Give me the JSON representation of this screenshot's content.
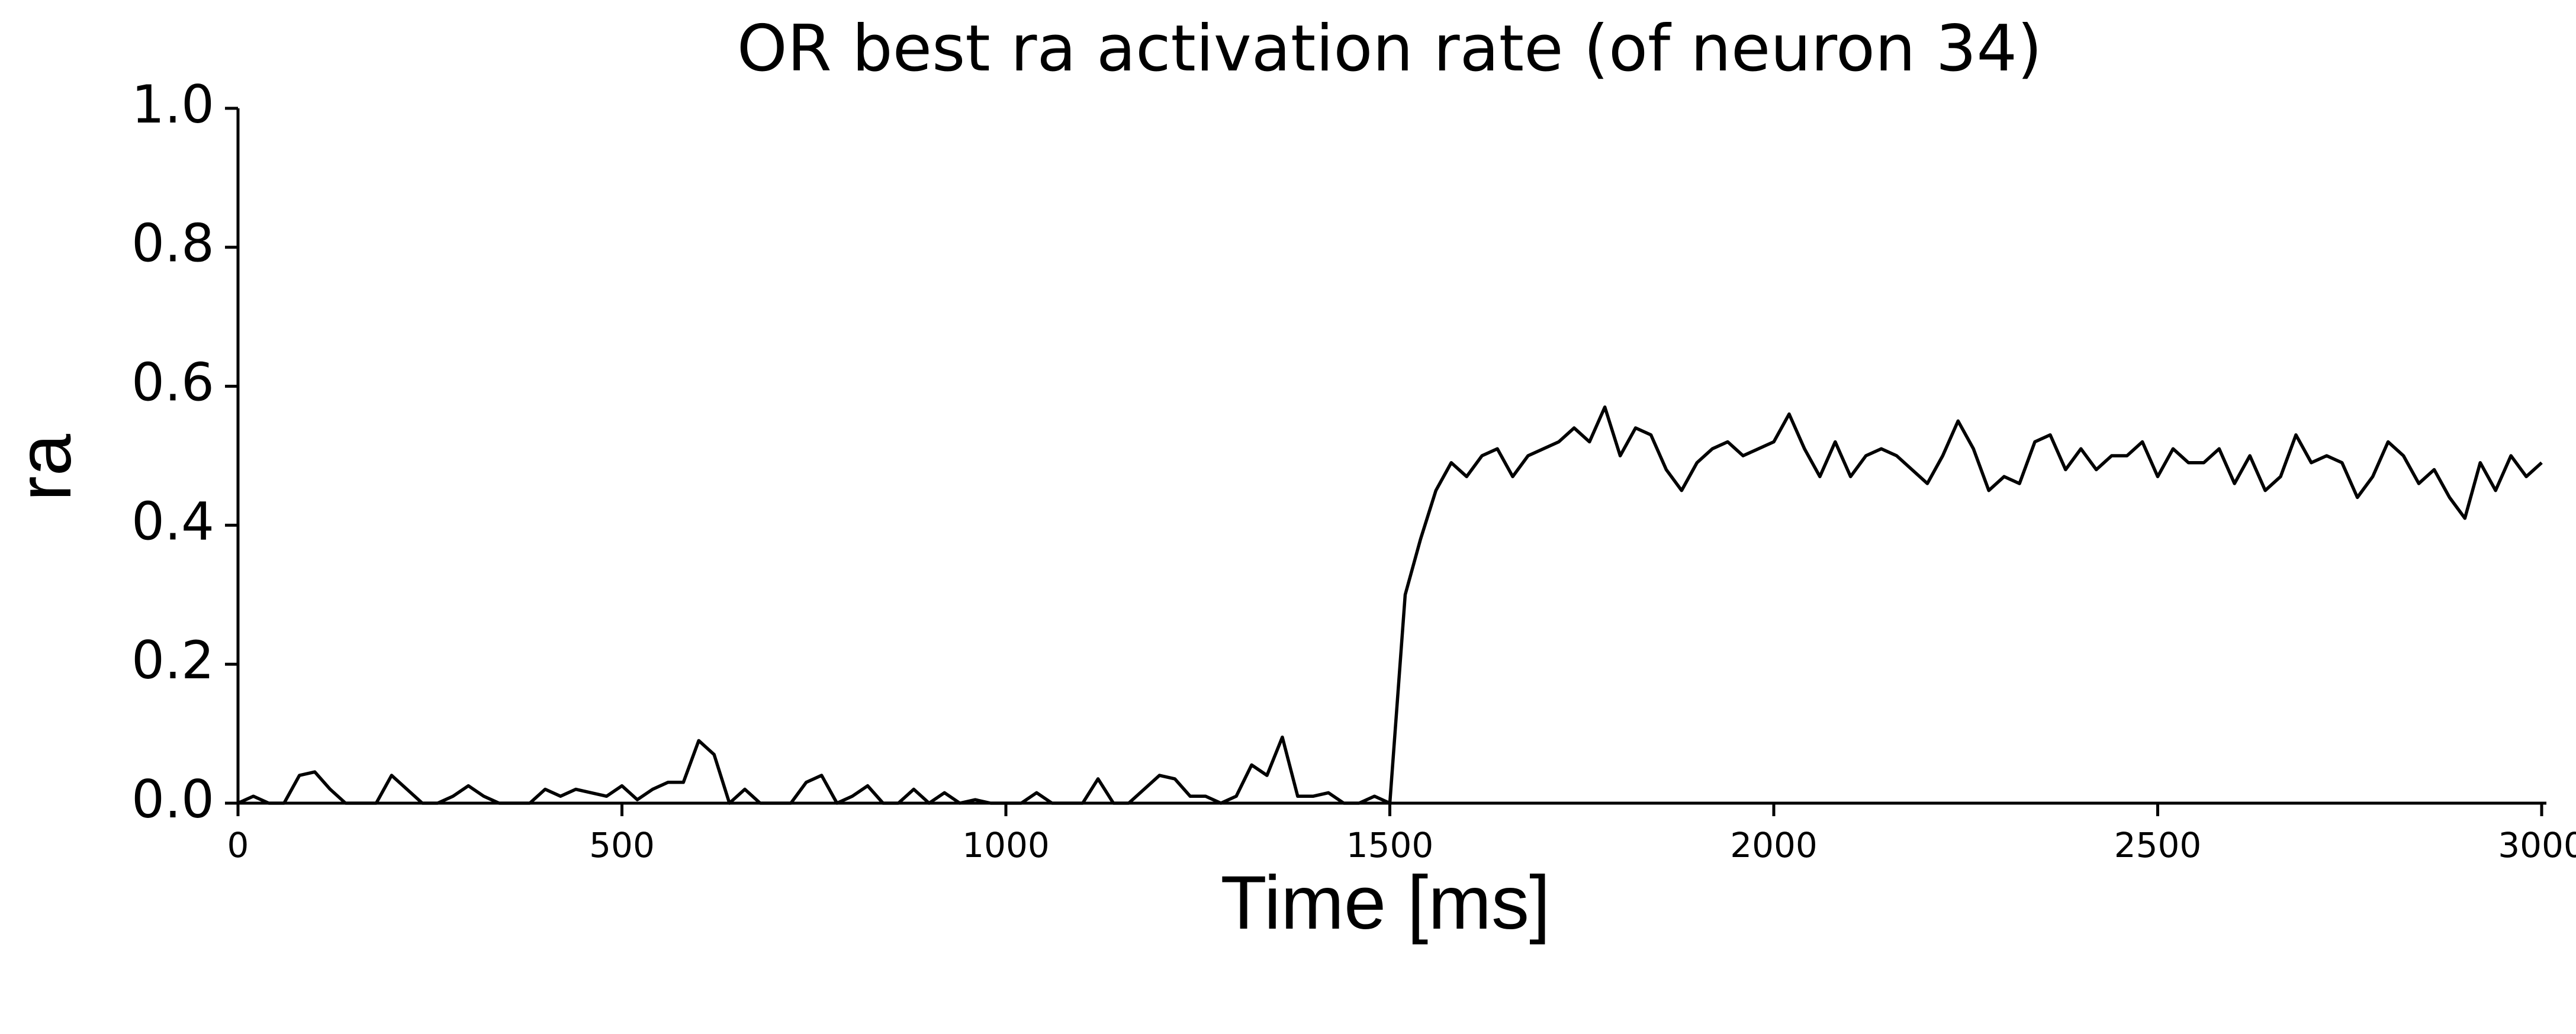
{
  "chart_data": {
    "type": "line",
    "title": "OR best ra activation rate (of neuron 34)",
    "xlabel": "Time [ms]",
    "ylabel": "ra",
    "x": [
      0,
      20,
      40,
      60,
      80,
      100,
      120,
      140,
      160,
      180,
      200,
      220,
      240,
      260,
      280,
      300,
      320,
      340,
      360,
      380,
      400,
      420,
      440,
      460,
      480,
      500,
      520,
      540,
      560,
      580,
      600,
      620,
      640,
      660,
      680,
      700,
      720,
      740,
      760,
      780,
      800,
      820,
      840,
      860,
      880,
      900,
      920,
      940,
      960,
      980,
      1000,
      1020,
      1040,
      1060,
      1080,
      1100,
      1120,
      1140,
      1160,
      1180,
      1200,
      1220,
      1240,
      1260,
      1280,
      1300,
      1320,
      1340,
      1360,
      1380,
      1400,
      1420,
      1440,
      1460,
      1480,
      1500,
      1520,
      1540,
      1560,
      1580,
      1600,
      1620,
      1640,
      1660,
      1680,
      1700,
      1720,
      1740,
      1760,
      1780,
      1800,
      1820,
      1840,
      1860,
      1880,
      1900,
      1920,
      1940,
      1960,
      1980,
      2000,
      2020,
      2040,
      2060,
      2080,
      2100,
      2120,
      2140,
      2160,
      2180,
      2200,
      2220,
      2240,
      2260,
      2280,
      2300,
      2320,
      2340,
      2360,
      2380,
      2400,
      2420,
      2440,
      2460,
      2480,
      2500,
      2520,
      2540,
      2560,
      2580,
      2600,
      2620,
      2640,
      2660,
      2680,
      2700,
      2720,
      2740,
      2760,
      2780,
      2800,
      2820,
      2840,
      2860,
      2880,
      2900,
      2920,
      2940,
      2960,
      2980,
      3000
    ],
    "series": [
      {
        "name": "ra",
        "color": "#000000",
        "values": [
          0,
          0.01,
          0,
          0,
          0.04,
          0.045,
          0.02,
          0,
          0,
          0,
          0.04,
          0.02,
          0,
          0,
          0.01,
          0.025,
          0.01,
          0,
          0,
          0,
          0.02,
          0.01,
          0.02,
          0.015,
          0.01,
          0.025,
          0.005,
          0.02,
          0.03,
          0.03,
          0.09,
          0.07,
          0,
          0.02,
          0,
          0,
          0,
          0.03,
          0.04,
          0,
          0.01,
          0.025,
          0,
          0,
          0.02,
          0,
          0.015,
          0,
          0.005,
          0,
          0,
          0,
          0.015,
          0,
          0,
          0,
          0.035,
          0,
          0,
          0.02,
          0.04,
          0.035,
          0.01,
          0.01,
          0,
          0.01,
          0.055,
          0.04,
          0.095,
          0.01,
          0.01,
          0.015,
          0,
          0,
          0.01,
          0,
          0.3,
          0.38,
          0.45,
          0.49,
          0.47,
          0.5,
          0.51,
          0.47,
          0.5,
          0.51,
          0.52,
          0.54,
          0.52,
          0.57,
          0.5,
          0.54,
          0.53,
          0.48,
          0.45,
          0.49,
          0.51,
          0.52,
          0.5,
          0.51,
          0.52,
          0.56,
          0.51,
          0.47,
          0.52,
          0.47,
          0.5,
          0.51,
          0.5,
          0.48,
          0.46,
          0.5,
          0.55,
          0.51,
          0.45,
          0.47,
          0.46,
          0.52,
          0.53,
          0.48,
          0.51,
          0.48,
          0.5,
          0.5,
          0.52,
          0.47,
          0.51,
          0.49,
          0.49,
          0.51,
          0.46,
          0.5,
          0.45,
          0.47,
          0.53,
          0.49,
          0.5,
          0.49,
          0.44,
          0.47,
          0.52,
          0.5,
          0.46,
          0.48,
          0.44,
          0.41,
          0.49,
          0.45,
          0.5,
          0.47,
          0.49
        ]
      }
    ],
    "xlim": [
      0,
      3000
    ],
    "xticks": [
      0,
      500,
      1000,
      1500,
      2000,
      2500,
      3000
    ],
    "ylim": [
      0,
      1
    ],
    "yticks": [
      {
        "value": 0,
        "label": "0.0"
      },
      0.2,
      0.4,
      0.6,
      0.8,
      {
        "value": 1,
        "label": "1.0"
      }
    ],
    "grid": false
  }
}
